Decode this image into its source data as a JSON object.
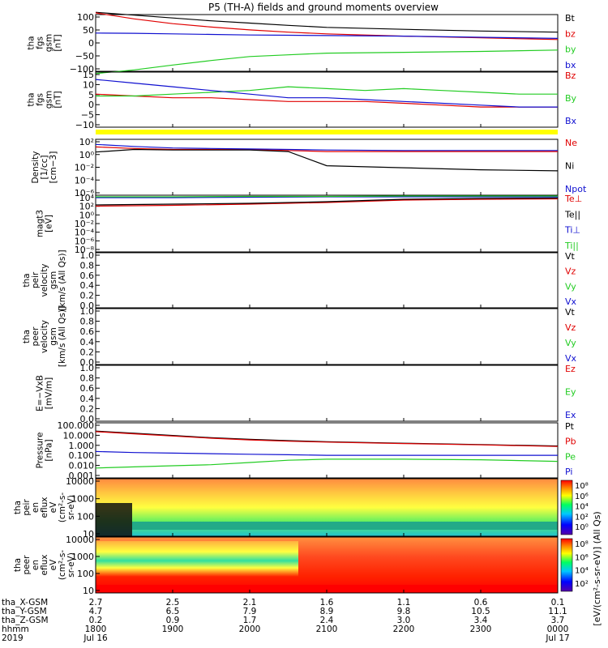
{
  "title": "P5 (TH-A) fields and ground moments overview",
  "colors": {
    "black": "#000000",
    "red": "#e00000",
    "green": "#22cc22",
    "blue": "#1010d0",
    "yellow": "#ffff00"
  },
  "x_axis": {
    "ticks": [
      "1800",
      "1900",
      "2000",
      "2100",
      "2200",
      "2300",
      "0000"
    ],
    "row_labels": [
      "tha_X-GSM",
      "tha_Y-GSM",
      "tha_Z-GSM",
      "hhmm",
      "2019"
    ],
    "rows": {
      "x_gsm": [
        "2.7",
        "2.5",
        "2.1",
        "1.6",
        "1.1",
        "0.6",
        "0.1"
      ],
      "y_gsm": [
        "4.7",
        "6.5",
        "7.9",
        "8.9",
        "9.8",
        "10.5",
        "11.1"
      ],
      "z_gsm": [
        "0.2",
        "0.9",
        "1.7",
        "2.4",
        "3.0",
        "3.4",
        "3.7"
      ]
    },
    "dates": {
      "start": "Jul 16",
      "end": "Jul 17"
    }
  },
  "chart_data": [
    {
      "type": "line",
      "ylabel_lines": [
        "tha",
        "fgs",
        "gsm",
        "[nT]"
      ],
      "ylim": [
        -100,
        100
      ],
      "yticks": [
        "100",
        "50",
        "0",
        "−50",
        "−100"
      ],
      "legend": [
        "Bt",
        "bz",
        "by",
        "bx"
      ],
      "series": [
        {
          "name": "Bt",
          "x": [
            18,
            18.5,
            19,
            19.5,
            20,
            20.5,
            21,
            22,
            23,
            24
          ],
          "values": [
            108,
            98,
            88,
            78,
            70,
            62,
            55,
            48,
            42,
            38
          ]
        },
        {
          "name": "bz",
          "x": [
            18,
            18.5,
            19,
            19.5,
            20,
            20.5,
            21,
            22,
            23,
            24
          ],
          "values": [
            106,
            85,
            68,
            56,
            46,
            38,
            32,
            24,
            18,
            12
          ]
        },
        {
          "name": "by",
          "x": [
            18,
            18.5,
            19,
            19.5,
            20,
            20.5,
            21,
            22,
            23,
            24
          ],
          "values": [
            -108,
            -95,
            -78,
            -62,
            -48,
            -42,
            -36,
            -33,
            -30,
            -25
          ]
        },
        {
          "name": "bx",
          "x": [
            18,
            18.5,
            19,
            19.5,
            20,
            20.5,
            21,
            22,
            23,
            24
          ],
          "values": [
            35,
            34,
            32,
            30,
            28,
            27,
            26,
            24,
            20,
            16
          ]
        }
      ]
    },
    {
      "type": "line",
      "ylabel_lines": [
        "tha",
        "fgs",
        "gsm",
        "[nT]"
      ],
      "ylim": [
        -15,
        15
      ],
      "yticks": [
        "15",
        "10",
        "5",
        "0",
        "−5",
        "−10"
      ],
      "legend": [
        "Bz",
        "By",
        "Bx"
      ],
      "series": [
        {
          "name": "Bz",
          "x": [
            18,
            18.5,
            19,
            19.5,
            20,
            20.5,
            21,
            21.5,
            22,
            22.5,
            23,
            23.5,
            24
          ],
          "values": [
            3,
            2,
            1,
            1,
            0,
            -1,
            -1,
            -1,
            -2,
            -3,
            -4,
            -4,
            -4
          ]
        },
        {
          "name": "By",
          "x": [
            18,
            18.5,
            19,
            19.5,
            20,
            20.5,
            21,
            21.5,
            22,
            22.5,
            23,
            23.5,
            24
          ],
          "values": [
            2,
            2,
            3,
            4,
            5,
            7,
            6,
            5,
            6,
            5,
            4,
            3,
            3
          ]
        },
        {
          "name": "Bx",
          "x": [
            18,
            18.5,
            19,
            19.5,
            20,
            20.5,
            21,
            21.5,
            22,
            22.5,
            23,
            23.5,
            24
          ],
          "values": [
            11,
            9,
            7,
            5,
            3,
            1,
            1,
            0,
            -1,
            -2,
            -3,
            -4,
            -4
          ]
        }
      ]
    },
    {
      "type": "line",
      "ylabel_lines": [
        "Density",
        "[1/cc]",
        "[cm−3]"
      ],
      "log": true,
      "ylim": [
        -8,
        3
      ],
      "yticks": [
        "10²",
        "10⁰",
        "10⁻²",
        "10⁻⁴",
        "10⁻⁶"
      ],
      "legend": [
        "Ne",
        "Ni",
        "Npot"
      ],
      "series": [
        {
          "name": "Ne",
          "x": [
            18,
            18.5,
            19,
            19.5,
            20,
            20.5,
            21,
            22,
            23,
            24
          ],
          "values": [
            1.5,
            1.2,
            1.0,
            1.0,
            1.0,
            0.8,
            0.6,
            0.6,
            0.6,
            0.6
          ]
        },
        {
          "name": "Ni",
          "x": [
            18,
            18.5,
            19,
            19.5,
            20,
            20.5,
            21,
            22,
            23,
            24
          ],
          "values": [
            0.5,
            1.0,
            0.9,
            0.9,
            0.9,
            0.6,
            -2.2,
            -2.6,
            -3.0,
            -3.2
          ]
        },
        {
          "name": "Npot",
          "x": [
            18,
            18.5,
            19,
            19.5,
            20,
            20.5,
            21,
            22,
            23,
            24
          ],
          "values": [
            2.0,
            1.6,
            1.3,
            1.2,
            1.1,
            1.0,
            0.9,
            0.8,
            0.8,
            0.8
          ]
        }
      ]
    },
    {
      "type": "line",
      "ylabel_lines": [
        "magt3",
        "[eV]"
      ],
      "log": true,
      "ylim": [
        -10,
        4
      ],
      "yticks": [
        "10⁴",
        "10²",
        "10⁰",
        "10⁻²",
        "10⁻⁴",
        "10⁻⁶",
        "10⁻⁸"
      ],
      "legend": [
        "Te⊥",
        "Te||",
        "Ti⊥",
        "Ti||"
      ],
      "series": [
        {
          "name": "Te⊥",
          "x": [
            18,
            19,
            20,
            21,
            22,
            23,
            24
          ],
          "values": [
            1.3,
            1.5,
            1.8,
            2.2,
            2.8,
            3.0,
            3.1
          ]
        },
        {
          "name": "Te||",
          "x": [
            18,
            19,
            20,
            21,
            22,
            23,
            24
          ],
          "values": [
            1.6,
            1.8,
            2.0,
            2.4,
            3.0,
            3.2,
            3.3
          ]
        },
        {
          "name": "Ti⊥",
          "x": [
            18,
            19,
            20,
            21,
            22,
            23,
            24
          ],
          "values": [
            3.4,
            3.4,
            3.5,
            3.6,
            3.6,
            3.6,
            3.6
          ]
        },
        {
          "name": "Ti||",
          "x": [
            18,
            19,
            20,
            21,
            22,
            23,
            24
          ],
          "values": [
            3.6,
            3.6,
            3.7,
            3.7,
            3.8,
            3.8,
            3.8
          ]
        }
      ]
    },
    {
      "type": "line",
      "ylabel_lines": [
        "tha",
        "peir",
        "velocity",
        "gsm",
        "[km/s (All Qs)]"
      ],
      "ylim": [
        0,
        1
      ],
      "yticks": [
        "1.0",
        "0.8",
        "0.6",
        "0.4",
        "0.2",
        "0.0"
      ],
      "legend": [
        "Vt",
        "Vz",
        "Vy",
        "Vx"
      ],
      "series": []
    },
    {
      "type": "line",
      "ylabel_lines": [
        "tha",
        "peer",
        "velocity",
        "gsm",
        "[km/s (All Qs)]"
      ],
      "ylim": [
        0,
        1
      ],
      "yticks": [
        "1.0",
        "0.8",
        "0.6",
        "0.4",
        "0.2",
        "0.0"
      ],
      "legend": [
        "Vt",
        "Vz",
        "Vy",
        "Vx"
      ],
      "series": []
    },
    {
      "type": "line",
      "ylabel_lines": [
        "E=−VxB",
        "[mV/m]"
      ],
      "ylim": [
        0,
        1
      ],
      "yticks": [
        "1.0",
        "0.8",
        "0.6",
        "0.4",
        "0.2",
        "0.0"
      ],
      "legend": [
        "Ez",
        "Ey",
        "Ex"
      ],
      "series": []
    },
    {
      "type": "line",
      "ylabel_lines": [
        "Pressure",
        "[nPa]"
      ],
      "log": true,
      "ylim": [
        -3,
        2
      ],
      "yticks": [
        "100.000",
        "10.000",
        "1.000",
        "0.100",
        "0.010",
        "0.001"
      ],
      "legend": [
        "Pt",
        "Pb",
        "Pe",
        "Pi"
      ],
      "series": [
        {
          "name": "Pt",
          "x": [
            18,
            18.5,
            19,
            19.5,
            20,
            20.5,
            21,
            22,
            23,
            24
          ],
          "values": [
            1.25,
            1.05,
            0.85,
            0.65,
            0.5,
            0.38,
            0.28,
            0.15,
            0.02,
            -0.1
          ]
        },
        {
          "name": "Pb",
          "x": [
            18,
            18.5,
            19,
            19.5,
            20,
            20.5,
            21,
            22,
            23,
            24
          ],
          "values": [
            1.2,
            1.0,
            0.8,
            0.6,
            0.45,
            0.33,
            0.25,
            0.12,
            0.0,
            -0.15
          ]
        },
        {
          "name": "Pe",
          "x": [
            18,
            18.5,
            19,
            19.5,
            20,
            20.5,
            21,
            22,
            23,
            24
          ],
          "values": [
            -2.1,
            -2.0,
            -1.9,
            -1.8,
            -1.6,
            -1.4,
            -1.3,
            -1.3,
            -1.35,
            -1.5
          ]
        },
        {
          "name": "Pi",
          "x": [
            18,
            18.5,
            19,
            19.5,
            20,
            20.5,
            21,
            22,
            23,
            24
          ],
          "values": [
            -0.6,
            -0.7,
            -0.75,
            -0.8,
            -0.85,
            -0.9,
            -0.95,
            -0.95,
            -0.95,
            -0.95
          ]
        }
      ]
    },
    {
      "type": "heatmap",
      "ylabel_lines": [
        "tha",
        "peir",
        "en",
        "eflux",
        "eV",
        "(cm²-s-",
        "sr-eV)"
      ],
      "yticks": [
        "10000",
        "1000",
        "100",
        "10"
      ],
      "colorbar_ticks": [
        "10⁸",
        "10⁶",
        "10⁴",
        "10²",
        "10⁰"
      ],
      "x": [
        18,
        19,
        20,
        21,
        22,
        23,
        24
      ],
      "y_log_energy": [
        1.3,
        2.3,
        3.3,
        4.0
      ]
    },
    {
      "type": "heatmap",
      "ylabel_lines": [
        "tha",
        "peer",
        "en",
        "eflux",
        "eV",
        "(cm²-s-",
        "sr-eV)"
      ],
      "yticks": [
        "10000",
        "1000",
        "100",
        "10"
      ],
      "colorbar_ticks": [
        "10⁸",
        "10⁶",
        "10⁴",
        "10²"
      ],
      "x": [
        18,
        19,
        20,
        21,
        22,
        23,
        24
      ],
      "y_log_energy": [
        1.3,
        2.3,
        3.3,
        4.0
      ]
    }
  ],
  "colorbar_label": "[eV/(cm²-s-sr-eV)] (All Qs)"
}
